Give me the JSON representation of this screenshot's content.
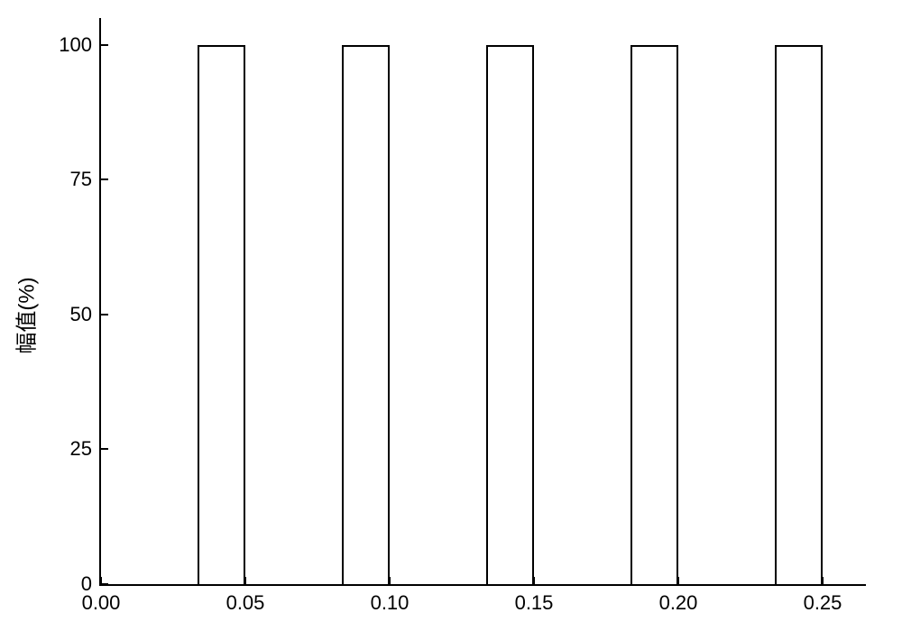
{
  "chart": {
    "type": "bar",
    "ylabel": "幅值(%)",
    "label_fontsize": 24,
    "tick_fontsize": 22,
    "background_color": "#ffffff",
    "axis_color": "#000000",
    "bar_fill_color": "#ffffff",
    "bar_border_color": "#000000",
    "bar_border_width": 2,
    "xlim": [
      0.0,
      0.265
    ],
    "ylim": [
      0,
      105
    ],
    "xticks": [
      0.0,
      0.05,
      0.1,
      0.15,
      0.2,
      0.25
    ],
    "xtick_labels": [
      "0.00",
      "0.05",
      "0.10",
      "0.15",
      "0.20",
      "0.25"
    ],
    "yticks": [
      0,
      25,
      50,
      75,
      100
    ],
    "ytick_labels": [
      "0",
      "25",
      "50",
      "75",
      "100"
    ],
    "bars": [
      {
        "x_start": 0.0335,
        "x_end": 0.05,
        "value": 100
      },
      {
        "x_start": 0.0835,
        "x_end": 0.1,
        "value": 100
      },
      {
        "x_start": 0.1335,
        "x_end": 0.15,
        "value": 100
      },
      {
        "x_start": 0.1835,
        "x_end": 0.2,
        "value": 100
      },
      {
        "x_start": 0.2335,
        "x_end": 0.25,
        "value": 100
      }
    ]
  }
}
